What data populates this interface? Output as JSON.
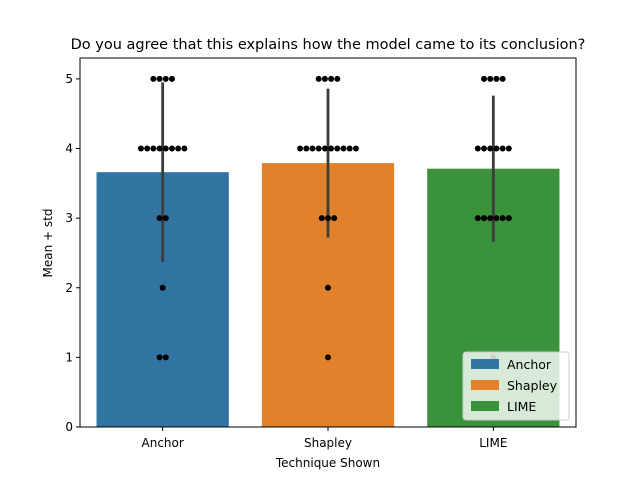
{
  "chart_data": {
    "type": "bar",
    "title": "Do you agree that this explains how the model came to its conclusion?",
    "xlabel": "Technique Shown",
    "ylabel": "Mean + std",
    "ylim": [
      0,
      5.3
    ],
    "yticks": [
      0,
      1,
      2,
      3,
      4,
      5
    ],
    "categories": [
      "Anchor",
      "Shapley",
      "LIME"
    ],
    "colors": [
      "#3274a1",
      "#e1812c",
      "#3a923a"
    ],
    "values": [
      3.66,
      3.79,
      3.71
    ],
    "std": [
      1.29,
      1.07,
      1.05
    ],
    "responses": [
      [
        5,
        5,
        5,
        5,
        4,
        4,
        4,
        4,
        4,
        4,
        4,
        4,
        3,
        3,
        2,
        1,
        1
      ],
      [
        5,
        5,
        5,
        5,
        4,
        4,
        4,
        4,
        4,
        4,
        4,
        4,
        4,
        4,
        3,
        3,
        3,
        2,
        1
      ],
      [
        5,
        5,
        5,
        5,
        4,
        4,
        4,
        4,
        4,
        4,
        3,
        3,
        3,
        3,
        3,
        3,
        1
      ]
    ],
    "legend": {
      "position": "lower-right",
      "entries": [
        "Anchor",
        "Shapley",
        "LIME"
      ]
    },
    "grid": false
  }
}
